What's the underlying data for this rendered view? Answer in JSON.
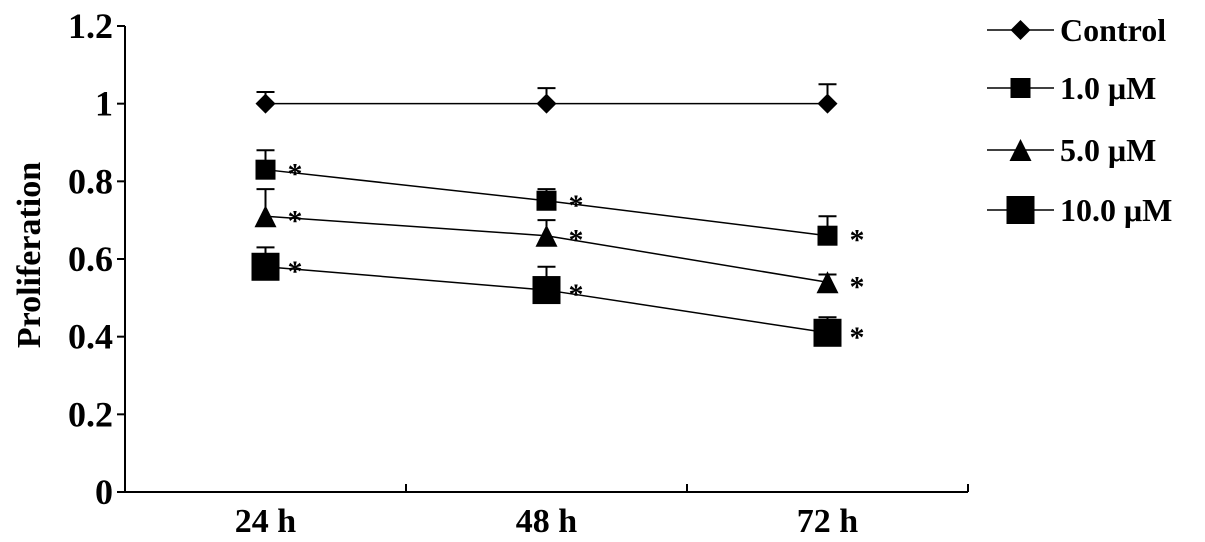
{
  "chart_data": {
    "type": "line",
    "title": "",
    "xlabel": "",
    "ylabel": "Proliferation",
    "categories": [
      "24 h",
      "48 h",
      "72 h"
    ],
    "ylim": [
      0,
      1.2
    ],
    "yticks": [
      "0",
      "0.2",
      "0.4",
      "0.6",
      "0.8",
      "1",
      "1.2"
    ],
    "grid": false,
    "legend_position": "right",
    "significance_marker": "*",
    "series": [
      {
        "name": "Control",
        "marker": "diamond",
        "values": [
          1.0,
          1.0,
          1.0
        ],
        "errors": [
          0.03,
          0.04,
          0.05
        ],
        "significant": [
          false,
          false,
          false
        ]
      },
      {
        "name": "1.0 μM",
        "marker": "square",
        "values": [
          0.83,
          0.75,
          0.66
        ],
        "errors": [
          0.05,
          0.03,
          0.05
        ],
        "significant": [
          true,
          true,
          true
        ]
      },
      {
        "name": "5.0 μM",
        "marker": "triangle",
        "values": [
          0.71,
          0.66,
          0.54
        ],
        "errors": [
          0.07,
          0.04,
          0.02
        ],
        "significant": [
          true,
          true,
          true
        ]
      },
      {
        "name": "10.0 μM",
        "marker": "big-square",
        "values": [
          0.58,
          0.52,
          0.41
        ],
        "errors": [
          0.05,
          0.06,
          0.04
        ],
        "significant": [
          true,
          true,
          true
        ]
      }
    ]
  }
}
